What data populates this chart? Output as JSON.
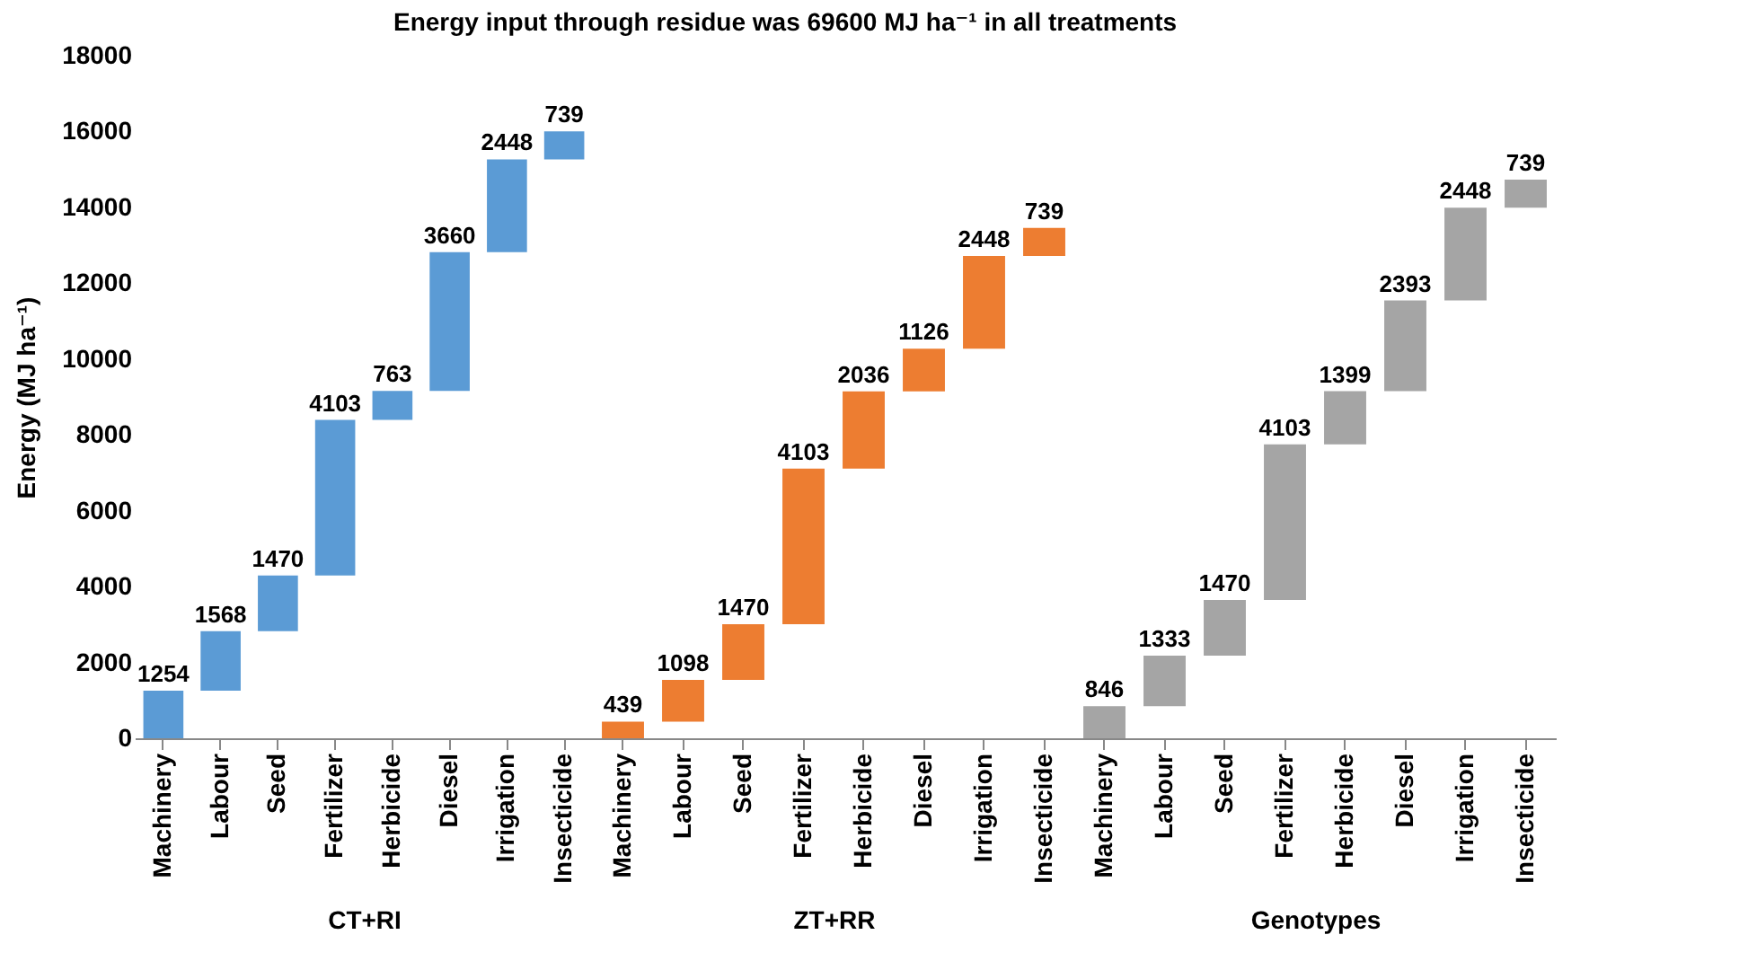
{
  "chart_data": [
    {
      "type": "bar",
      "title": "Energy input through residue was 69600 MJ ha⁻¹ in all treatments",
      "ylabel": "Energy (MJ ha⁻¹)",
      "xlabel": "CT+RI",
      "categories": [
        "Machinery",
        "Labour",
        "Seed",
        "Fertilizer",
        "Herbicide",
        "Diesel",
        "Irrigation",
        "Insecticide"
      ],
      "values": [
        1254,
        1568,
        1470,
        4103,
        763,
        3660,
        2448,
        739
      ],
      "base": [
        0,
        1254,
        2822,
        4292,
        8395,
        9158,
        12818,
        15266
      ],
      "color": "#5b9bd5",
      "data_labels": true,
      "ylim": [
        0,
        18000
      ],
      "yticks": [
        0,
        2000,
        4000,
        6000,
        8000,
        10000,
        12000,
        14000,
        16000,
        18000
      ]
    },
    {
      "type": "bar",
      "xlabel": "ZT+RR",
      "categories": [
        "Machinery",
        "Labour",
        "Seed",
        "Fertilizer",
        "Herbicide",
        "Diesel",
        "Irrigation",
        "Insecticide"
      ],
      "values": [
        439,
        1098,
        1470,
        4103,
        2036,
        1126,
        2448,
        739
      ],
      "base": [
        0,
        439,
        1537,
        3007,
        7110,
        9146,
        10272,
        12720
      ],
      "color": "#ed7d31",
      "data_labels": true,
      "ylim": [
        0,
        18000
      ],
      "tick_labels": "x"
    },
    {
      "type": "bar",
      "xlabel": "Genotypes",
      "categories": [
        "Machinery",
        "Labour",
        "Seed",
        "Fertilizer",
        "Herbicide",
        "Diesel",
        "Irrigation",
        "Insecticide"
      ],
      "values": [
        846,
        1333,
        1470,
        4103,
        1399,
        2393,
        2448,
        739
      ],
      "base": [
        0,
        846,
        2179,
        3649,
        7752,
        9151,
        11544,
        13992
      ],
      "color": "#a5a5a5",
      "data_labels": true,
      "ylim": [
        0,
        18000
      ],
      "tick_labels": "x"
    }
  ]
}
